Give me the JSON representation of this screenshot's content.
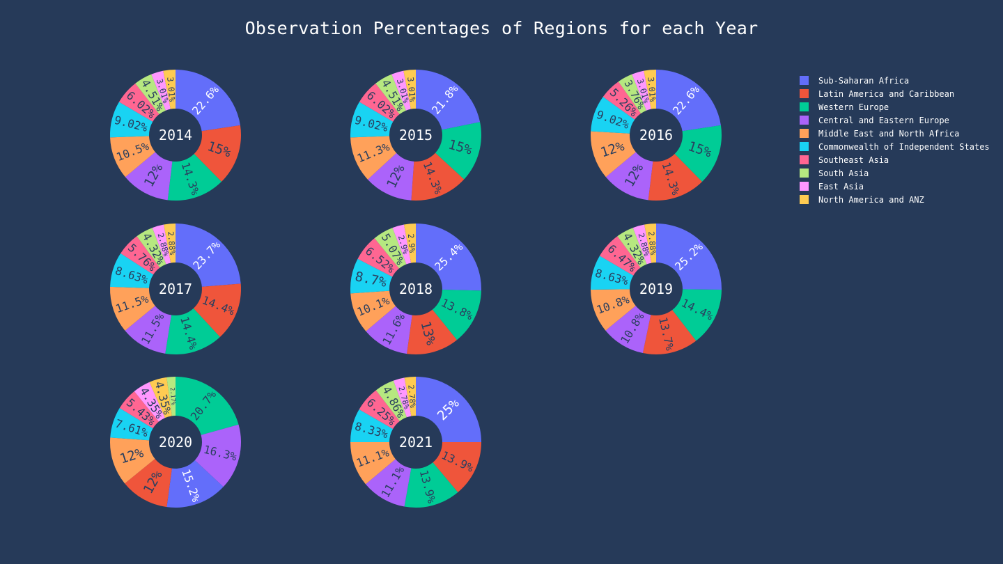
{
  "title": "Observation Percentages of Regions for each Year",
  "colors": {
    "background": "#263a59",
    "Sub-Saharan Africa": "#636efa",
    "Latin America and Caribbean": "#ef553b",
    "Western Europe": "#00cc96",
    "Central and Eastern Europe": "#ab63fa",
    "Middle East and North Africa": "#ffa15a",
    "Commonwealth of Independent States": "#19d3f3",
    "Southeast Asia": "#ff6692",
    "South Asia": "#b6e880",
    "East Asia": "#ff97ff",
    "North America and ANZ": "#fecb52"
  },
  "legend": [
    "Sub-Saharan Africa",
    "Latin America and Caribbean",
    "Western Europe",
    "Central and Eastern Europe",
    "Middle East and North Africa",
    "Commonwealth of Independent States",
    "Southeast Asia",
    "South Asia",
    "East Asia",
    "North America and ANZ"
  ],
  "chart_data": [
    {
      "type": "pie",
      "hole": true,
      "center_text": "2014",
      "labels": [
        "Sub-Saharan Africa",
        "Latin America and Caribbean",
        "Western Europe",
        "Central and Eastern Europe",
        "Middle East and North Africa",
        "Commonwealth of Independent States",
        "Southeast Asia",
        "South Asia",
        "East Asia",
        "North America and ANZ"
      ],
      "values": [
        22.6,
        15.0,
        14.3,
        12.0,
        10.5,
        9.02,
        6.02,
        4.51,
        3.01,
        3.01
      ],
      "text": [
        "22.6%",
        "15%",
        "14.3%",
        "12%",
        "10.5%",
        "9.02%",
        "6.02%",
        "4.51%",
        "3.01%",
        "3.01%"
      ]
    },
    {
      "type": "pie",
      "hole": true,
      "center_text": "2015",
      "labels": [
        "Sub-Saharan Africa",
        "Western Europe",
        "Latin America and Caribbean",
        "Central and Eastern Europe",
        "Middle East and North Africa",
        "Commonwealth of Independent States",
        "Southeast Asia",
        "South Asia",
        "East Asia",
        "North America and ANZ"
      ],
      "values": [
        21.8,
        15.0,
        14.3,
        12.0,
        11.3,
        9.02,
        6.02,
        4.51,
        3.01,
        3.01
      ],
      "text": [
        "21.8%",
        "15%",
        "14.3%",
        "12%",
        "11.3%",
        "9.02%",
        "6.02%",
        "4.51%",
        "3.01%",
        "3.01%"
      ]
    },
    {
      "type": "pie",
      "hole": true,
      "center_text": "2016",
      "labels": [
        "Sub-Saharan Africa",
        "Western Europe",
        "Latin America and Caribbean",
        "Central and Eastern Europe",
        "Middle East and North Africa",
        "Commonwealth of Independent States",
        "Southeast Asia",
        "South Asia",
        "East Asia",
        "North America and ANZ"
      ],
      "values": [
        22.6,
        15.0,
        14.3,
        12.0,
        12.0,
        9.02,
        5.26,
        3.76,
        3.01,
        3.01
      ],
      "text": [
        "22.6%",
        "15%",
        "14.3%",
        "12%",
        "12%",
        "9.02%",
        "5.26%",
        "3.76%",
        "3.01%",
        "3.01%"
      ]
    },
    {
      "type": "pie",
      "hole": true,
      "center_text": "2017",
      "labels": [
        "Sub-Saharan Africa",
        "Latin America and Caribbean",
        "Western Europe",
        "Central and Eastern Europe",
        "Middle East and North Africa",
        "Commonwealth of Independent States",
        "Southeast Asia",
        "South Asia",
        "East Asia",
        "North America and ANZ"
      ],
      "values": [
        23.7,
        14.4,
        14.4,
        11.5,
        11.5,
        8.63,
        5.76,
        4.32,
        2.88,
        2.88
      ],
      "text": [
        "23.7%",
        "14.4%",
        "14.4%",
        "11.5%",
        "11.5%",
        "8.63%",
        "5.76%",
        "4.32%",
        "2.88%",
        "2.88%"
      ]
    },
    {
      "type": "pie",
      "hole": true,
      "center_text": "2018",
      "labels": [
        "Sub-Saharan Africa",
        "Western Europe",
        "Latin America and Caribbean",
        "Central and Eastern Europe",
        "Middle East and North Africa",
        "Commonwealth of Independent States",
        "Southeast Asia",
        "South Asia",
        "East Asia",
        "North America and ANZ"
      ],
      "values": [
        25.4,
        13.8,
        13.0,
        11.6,
        10.1,
        8.7,
        6.52,
        5.07,
        2.9,
        2.9
      ],
      "text": [
        "25.4%",
        "13.8%",
        "13%",
        "11.6%",
        "10.1%",
        "8.7%",
        "6.52%",
        "5.07%",
        "2.9%",
        "2.9%"
      ]
    },
    {
      "type": "pie",
      "hole": true,
      "center_text": "2019",
      "labels": [
        "Sub-Saharan Africa",
        "Western Europe",
        "Latin America and Caribbean",
        "Central and Eastern Europe",
        "Middle East and North Africa",
        "Commonwealth of Independent States",
        "Southeast Asia",
        "South Asia",
        "East Asia",
        "North America and ANZ"
      ],
      "values": [
        25.2,
        14.4,
        13.7,
        10.8,
        10.8,
        8.63,
        6.47,
        4.32,
        2.88,
        2.88
      ],
      "text": [
        "25.2%",
        "14.4%",
        "13.7%",
        "10.8%",
        "10.8%",
        "8.63%",
        "6.47%",
        "4.32%",
        "2.88%",
        "2.88%"
      ]
    },
    {
      "type": "pie",
      "hole": true,
      "center_text": "2020",
      "labels": [
        "Western Europe",
        "Central and Eastern Europe",
        "Sub-Saharan Africa",
        "Latin America and Caribbean",
        "Middle East and North Africa",
        "Commonwealth of Independent States",
        "Southeast Asia",
        "East Asia",
        "North America and ANZ",
        "South Asia"
      ],
      "values": [
        20.7,
        16.3,
        15.2,
        12.0,
        12.0,
        7.61,
        5.43,
        4.35,
        4.35,
        2.17
      ],
      "text": [
        "20.7%",
        "16.3%",
        "15.2%",
        "12%",
        "12%",
        "7.61%",
        "5.43%",
        "4.35%",
        "4.35%",
        "2.17%"
      ]
    },
    {
      "type": "pie",
      "hole": true,
      "center_text": "2021",
      "labels": [
        "Sub-Saharan Africa",
        "Latin America and Caribbean",
        "Western Europe",
        "Central and Eastern Europe",
        "Middle East and North Africa",
        "Commonwealth of Independent States",
        "Southeast Asia",
        "South Asia",
        "East Asia",
        "North America and ANZ"
      ],
      "values": [
        25.0,
        13.9,
        13.9,
        11.1,
        11.1,
        8.33,
        6.25,
        4.86,
        2.78,
        2.78
      ],
      "text": [
        "25%",
        "13.9%",
        "13.9%",
        "11.1%",
        "11.1%",
        "8.33%",
        "6.25%",
        "4.86%",
        "2.78%",
        "2.78%"
      ]
    }
  ]
}
